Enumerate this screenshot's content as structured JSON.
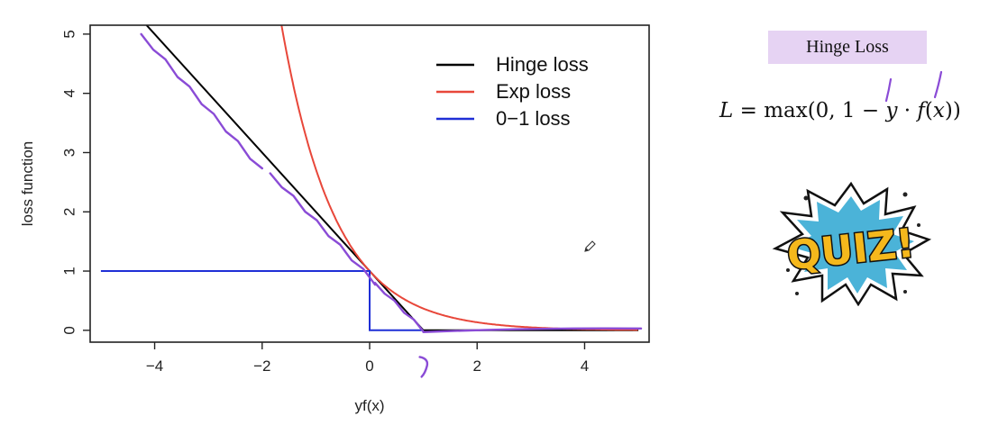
{
  "chart_data": {
    "type": "line",
    "xlabel": "yf(x)",
    "ylabel": "loss function",
    "xlim": [
      -5.2,
      5.2
    ],
    "ylim": [
      -0.2,
      5.15
    ],
    "xticks": [
      -4,
      -2,
      0,
      2,
      4
    ],
    "xtick_labels": [
      "−4",
      "−2",
      "0",
      "2",
      "4"
    ],
    "yticks": [
      0,
      1,
      2,
      3,
      4,
      5
    ],
    "ytick_labels": [
      "0",
      "1",
      "2",
      "3",
      "4",
      "5"
    ],
    "legend_position": "top-right",
    "series": [
      {
        "name": "Hinge loss",
        "color": "#000000",
        "x": [
          -4.2,
          1,
          5
        ],
        "y": [
          5.2,
          0,
          0
        ]
      },
      {
        "name": "Exp loss",
        "color": "#e8473a",
        "function": "exp(-x)",
        "x_range": [
          -1.65,
          5
        ]
      },
      {
        "name": "0−1 loss",
        "color": "#1f2fd6",
        "x": [
          -5,
          0,
          0,
          1
        ],
        "y": [
          1,
          1,
          0,
          0
        ]
      }
    ],
    "annotation_color": "#8a4bd6"
  },
  "side_panel": {
    "formula_title": "Hinge Loss",
    "formula": {
      "lhs": "L",
      "eq": " = ",
      "func": "max",
      "open": "(0, 1 − ",
      "y": "y",
      "dot": " · ",
      "f": "f",
      "paren_open": "(",
      "x": "x",
      "close": "))"
    },
    "badge_text": "QUIZ!",
    "badge_colors": {
      "fill": "#f5b81c",
      "burst": "#4bb3d8",
      "outline": "#111111"
    }
  },
  "icons": {
    "cursor": "pencil-icon",
    "badge": "quiz-burst-icon"
  }
}
